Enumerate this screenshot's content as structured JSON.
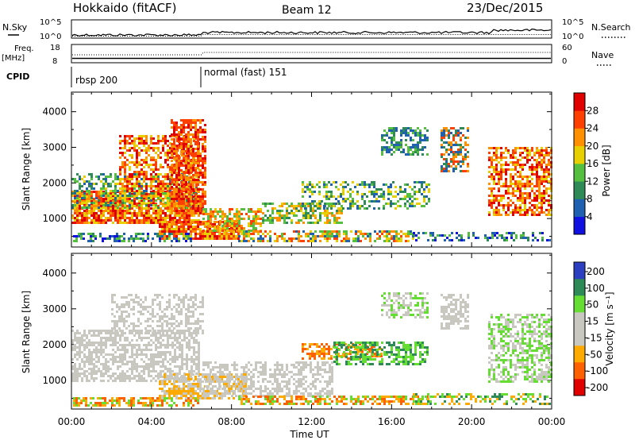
{
  "header": {
    "station": "Hokkaido (fitACF)",
    "beam": "Beam 12",
    "date": "23/Dec/2015"
  },
  "noise_panel": {
    "left_label": "N.Sky",
    "right_label": "N.Search",
    "left_ticks": [
      "10^5",
      "10^0"
    ],
    "right_ticks": [
      "10^5",
      "10^0"
    ]
  },
  "freq_panel": {
    "left_label_line1": "Freq.",
    "left_label_line2": "[MHz]",
    "right_label": "Nave",
    "left_ticks": [
      "18",
      "8"
    ],
    "right_ticks": [
      "60",
      "0"
    ]
  },
  "cpid_panel": {
    "label": "CPID",
    "modes": [
      {
        "text": "rbsp 200"
      },
      {
        "text": "normal (fast) 151"
      }
    ]
  },
  "colors": {
    "power": [
      "#1010e0",
      "#2060b0",
      "#2e8b57",
      "#55c040",
      "#e8d000",
      "#ff9000",
      "#ff4000",
      "#e00000"
    ],
    "velocity": [
      "#e00000",
      "#ff6000",
      "#ffaa00",
      "#c8c8c0",
      "#c8c8c0",
      "#66dd33",
      "#2e8b57",
      "#2b3fc0"
    ],
    "ground_scatter": "#c8c8c0"
  },
  "chart_data": [
    {
      "type": "heatmap",
      "ylabel": "Slant Range [km]",
      "yticks": [
        "1000",
        "2000",
        "3000",
        "4000"
      ],
      "y_values": [
        1000,
        2000,
        3000,
        4000
      ],
      "ylim": [
        200,
        4550
      ],
      "xlim_hours": [
        0,
        24
      ],
      "colorbar_label": "Power [dB]",
      "colorbar_ticks": [
        "4",
        "8",
        "12",
        "16",
        "20",
        "24",
        "28"
      ],
      "colorbar_values": [
        4,
        8,
        12,
        16,
        20,
        24,
        28
      ],
      "colorbar_range": [
        0,
        32
      ]
    },
    {
      "type": "heatmap",
      "ylabel": "Slant Range [km]",
      "yticks": [
        "1000",
        "2000",
        "3000",
        "4000"
      ],
      "y_values": [
        1000,
        2000,
        3000,
        4000
      ],
      "ylim": [
        200,
        4550
      ],
      "xlim_hours": [
        0,
        24
      ],
      "colorbar_label": "Velocity [m s⁻¹]",
      "colorbar_ticks": [
        "200",
        "100",
        "50",
        "15",
        "-15",
        "-50",
        "-100",
        "-200"
      ],
      "xlabel": "Time UT",
      "xticks": [
        "00:00",
        "04:00",
        "08:00",
        "12:00",
        "16:00",
        "20:00",
        "00:00"
      ],
      "x_values": [
        0,
        4,
        8,
        12,
        16,
        20,
        24
      ]
    }
  ]
}
